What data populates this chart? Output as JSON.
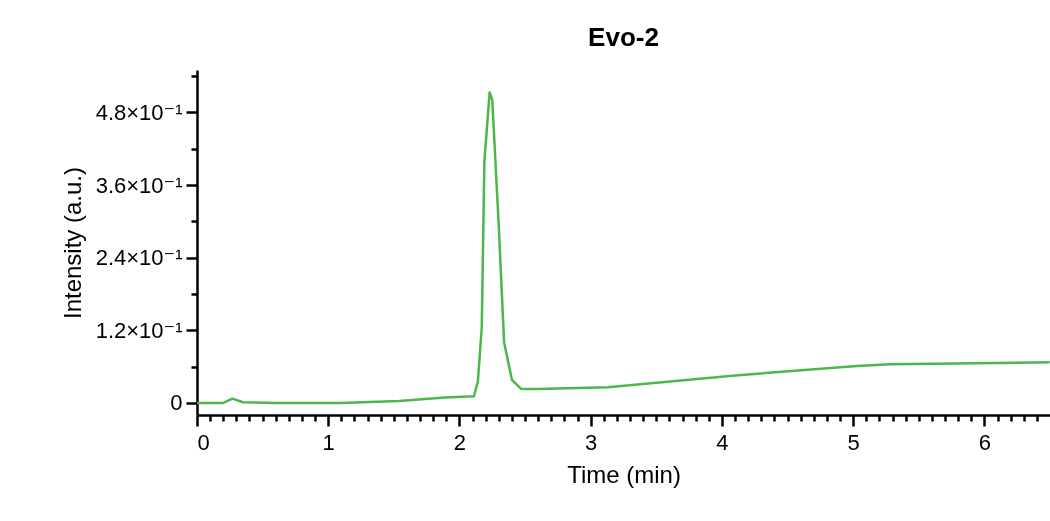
{
  "chart_data": {
    "type": "line",
    "title": "Evo-2",
    "xlabel": "Time (min)",
    "ylabel": "Intensity (a.u.)",
    "x": [
      0,
      0.2,
      0.27,
      0.35,
      0.6,
      1.09,
      1.54,
      1.89,
      2.11,
      2.14,
      2.17,
      2.19,
      2.23,
      2.25,
      2.3,
      2.34,
      2.4,
      2.47,
      2.6,
      3.13,
      4.08,
      5.03,
      5.28,
      6.49
    ],
    "series": [
      {
        "color": "#4cb84c",
        "values": [
          0,
          0,
          0.007,
          0.001,
          0,
          0,
          0.003,
          0.009,
          0.011,
          0.035,
          0.125,
          0.4,
          0.513,
          0.5,
          0.29,
          0.1,
          0.038,
          0.023,
          0.023,
          0.026,
          0.045,
          0.061,
          0.064,
          0.067
        ]
      }
    ],
    "xlim": [
      0,
      6.5
    ],
    "ylim": [
      -0.02,
      0.55
    ],
    "xticks": [
      0,
      {
        "value": 0.1,
        "label": null
      },
      {
        "value": 0.2,
        "label": null
      },
      {
        "value": 0.3,
        "label": null
      },
      {
        "value": 0.4,
        "label": null
      },
      {
        "value": 0.5,
        "label": null
      },
      {
        "value": 0.6,
        "label": null
      },
      {
        "value": 0.7,
        "label": null
      },
      {
        "value": 0.8,
        "label": null
      },
      {
        "value": 0.9,
        "label": null
      },
      1,
      {
        "value": 1.1,
        "label": null
      },
      {
        "value": 1.2,
        "label": null
      },
      {
        "value": 1.3,
        "label": null
      },
      {
        "value": 1.4,
        "label": null
      },
      {
        "value": 1.5,
        "label": null
      },
      {
        "value": 1.6,
        "label": null
      },
      {
        "value": 1.7,
        "label": null
      },
      {
        "value": 1.8,
        "label": null
      },
      {
        "value": 1.9,
        "label": null
      },
      2,
      {
        "value": 2.1,
        "label": null
      },
      {
        "value": 2.2,
        "label": null
      },
      {
        "value": 2.3,
        "label": null
      },
      {
        "value": 2.4,
        "label": null
      },
      {
        "value": 2.5,
        "label": null
      },
      {
        "value": 2.6,
        "label": null
      },
      {
        "value": 2.7,
        "label": null
      },
      {
        "value": 2.8,
        "label": null
      },
      {
        "value": 2.9,
        "label": null
      },
      3,
      {
        "value": 3.1,
        "label": null
      },
      {
        "value": 3.2,
        "label": null
      },
      {
        "value": 3.3,
        "label": null
      },
      {
        "value": 3.4,
        "label": null
      },
      {
        "value": 3.5,
        "label": null
      },
      {
        "value": 3.6,
        "label": null
      },
      {
        "value": 3.7,
        "label": null
      },
      {
        "value": 3.8,
        "label": null
      },
      {
        "value": 3.9,
        "label": null
      },
      4,
      {
        "value": 4.1,
        "label": null
      },
      {
        "value": 4.2,
        "label": null
      },
      {
        "value": 4.3,
        "label": null
      },
      {
        "value": 4.4,
        "label": null
      },
      {
        "value": 4.5,
        "label": null
      },
      {
        "value": 4.6,
        "label": null
      },
      {
        "value": 4.7,
        "label": null
      },
      {
        "value": 4.8,
        "label": null
      },
      {
        "value": 4.9,
        "label": null
      },
      5,
      {
        "value": 5.1,
        "label": null
      },
      {
        "value": 5.2,
        "label": null
      },
      {
        "value": 5.3,
        "label": null
      },
      {
        "value": 5.4,
        "label": null
      },
      {
        "value": 5.5,
        "label": null
      },
      {
        "value": 5.6,
        "label": null
      },
      {
        "value": 5.7,
        "label": null
      },
      {
        "value": 5.8,
        "label": null
      },
      {
        "value": 5.9,
        "label": null
      },
      6,
      {
        "value": 6.1,
        "label": null
      },
      {
        "value": 6.2,
        "label": null
      },
      {
        "value": 6.3,
        "label": null
      },
      {
        "value": 6.4,
        "label": null
      }
    ],
    "yticks": [
      0,
      {
        "value": 0.06,
        "label": null
      },
      {
        "value": 0.12,
        "label": "1.2×10⁻¹"
      },
      {
        "value": 0.18,
        "label": null
      },
      {
        "value": 0.24,
        "label": "2.4×10⁻¹"
      },
      {
        "value": 0.3,
        "label": null
      },
      {
        "value": 0.36,
        "label": "3.6×10⁻¹"
      },
      {
        "value": 0.42,
        "label": null
      },
      {
        "value": 0.48,
        "label": "4.8×10⁻¹"
      },
      {
        "value": 0.54,
        "label": null
      }
    ],
    "grid": false,
    "legend": false,
    "marker": "none",
    "line_style": "solid"
  }
}
